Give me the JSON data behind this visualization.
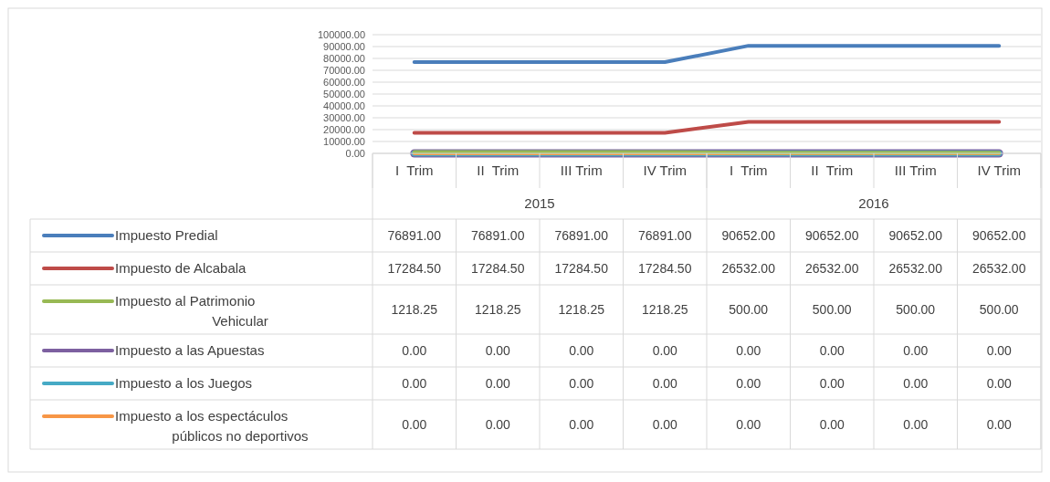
{
  "chart_data": {
    "type": "line",
    "categories": [
      "I  Trim",
      "II  Trim",
      "III Trim",
      "IV Trim",
      "I  Trim",
      "II  Trim",
      "III Trim",
      "IV Trim"
    ],
    "annotations": [
      "2015",
      "2016"
    ],
    "series": [
      {
        "name": "Impuesto Predial",
        "color": "#4a7ebb",
        "values": [
          76891,
          76891,
          76891,
          76891,
          90652,
          90652,
          90652,
          90652
        ],
        "value_labels": [
          "76891.00",
          "76891.00",
          "76891.00",
          "76891.00",
          "90652.00",
          "90652.00",
          "90652.00",
          "90652.00"
        ]
      },
      {
        "name": "Impuesto de Alcabala",
        "color": "#be4b48",
        "values": [
          17284.5,
          17284.5,
          17284.5,
          17284.5,
          26532,
          26532,
          26532,
          26532
        ],
        "value_labels": [
          "17284.50",
          "17284.50",
          "17284.50",
          "17284.50",
          "26532.00",
          "26532.00",
          "26532.00",
          "26532.00"
        ]
      },
      {
        "name": "Impuesto al Patrimonio Vehicular",
        "color": "#98b954",
        "values": [
          1218.25,
          1218.25,
          1218.25,
          1218.25,
          500,
          500,
          500,
          500
        ],
        "value_labels": [
          "1218.25",
          "1218.25",
          "1218.25",
          "1218.25",
          "500.00",
          "500.00",
          "500.00",
          "500.00"
        ]
      },
      {
        "name": "Impuesto a las Apuestas",
        "color": "#7d60a0",
        "values": [
          0,
          0,
          0,
          0,
          0,
          0,
          0,
          0
        ],
        "value_labels": [
          "0.00",
          "0.00",
          "0.00",
          "0.00",
          "0.00",
          "0.00",
          "0.00",
          "0.00"
        ]
      },
      {
        "name": "Impuesto a los Juegos",
        "color": "#46aac5",
        "values": [
          0,
          0,
          0,
          0,
          0,
          0,
          0,
          0
        ],
        "value_labels": [
          "0.00",
          "0.00",
          "0.00",
          "0.00",
          "0.00",
          "0.00",
          "0.00",
          "0.00"
        ]
      },
      {
        "name": "Impuesto a los espectáculos públicos no deportivos",
        "color": "#f79646",
        "values": [
          0,
          0,
          0,
          0,
          0,
          0,
          0,
          0
        ],
        "value_labels": [
          "0.00",
          "0.00",
          "0.00",
          "0.00",
          "0.00",
          "0.00",
          "0.00",
          "0.00"
        ]
      }
    ],
    "ylim": [
      0,
      100000
    ],
    "yticks": [
      {
        "value": 0,
        "label": "0.00"
      },
      {
        "value": 10000,
        "label": "10000.00"
      },
      {
        "value": 20000,
        "label": "20000.00"
      },
      {
        "value": 30000,
        "label": "30000.00"
      },
      {
        "value": 40000,
        "label": "40000.00"
      },
      {
        "value": 50000,
        "label": "50000.00"
      },
      {
        "value": 60000,
        "label": "60000.00"
      },
      {
        "value": 70000,
        "label": "70000.00"
      },
      {
        "value": 80000,
        "label": "80000.00"
      },
      {
        "value": 90000,
        "label": "90000.00"
      },
      {
        "value": 100000,
        "label": "100000.00"
      }
    ],
    "grid": "y",
    "legend": "bottom",
    "marker": "none",
    "line_style": "solid"
  }
}
